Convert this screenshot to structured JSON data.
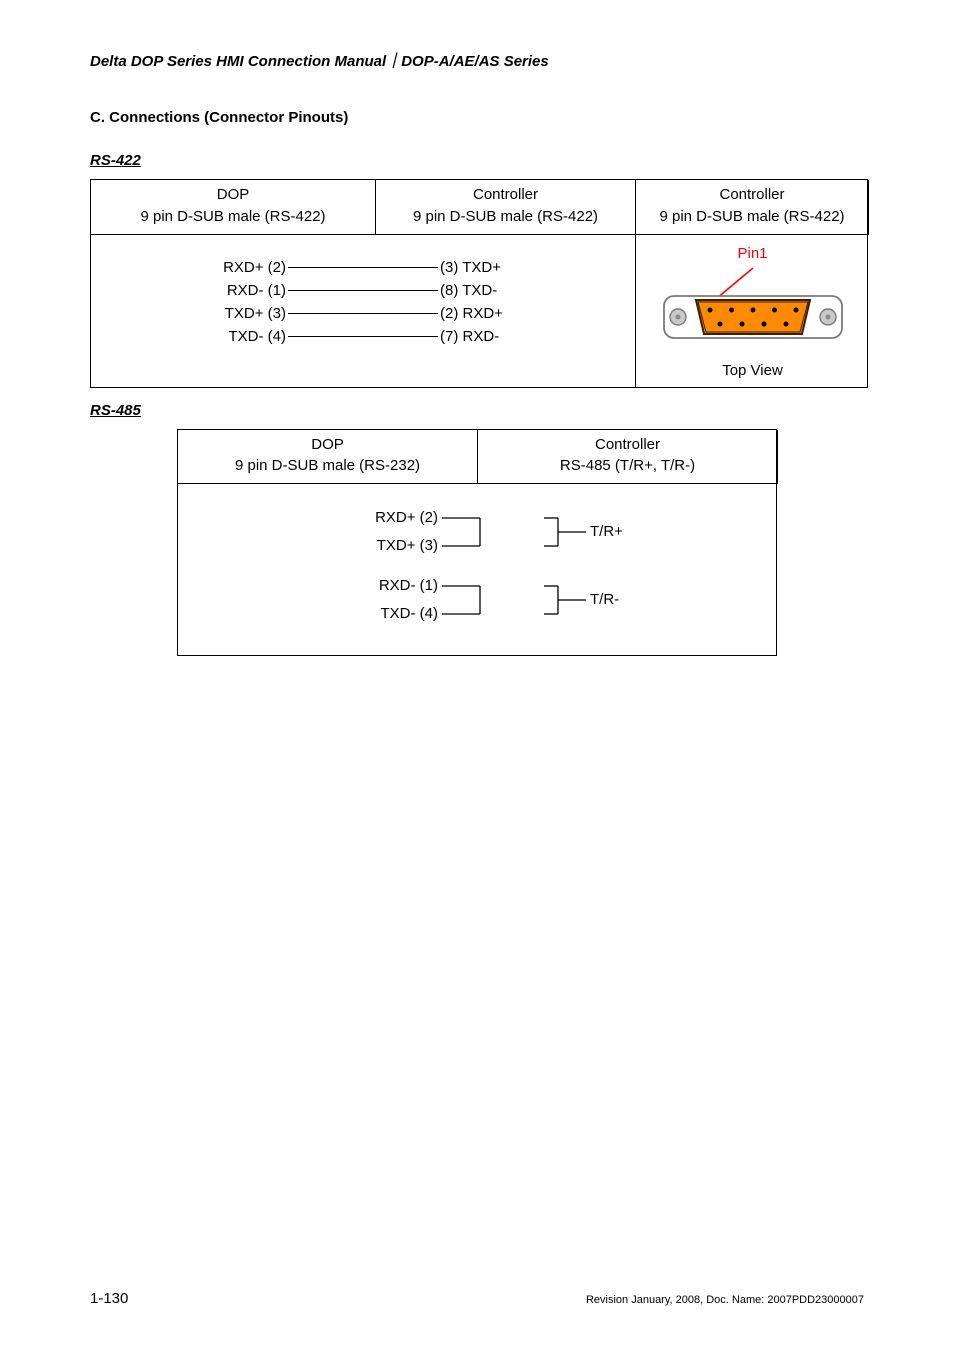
{
  "header": {
    "manual_title": "Delta DOP Series HMI Connection Manual",
    "separator": "｜",
    "series": "DOP-A/AE/AS Series"
  },
  "section_c_title": "C. Connections (Connector Pinouts)",
  "rs422": {
    "heading": "RS-422",
    "table": {
      "col1": {
        "title": "DOP",
        "sub": "9 pin D-SUB male (RS-422)"
      },
      "col2": {
        "title": "Controller",
        "sub": "9 pin D-SUB male (RS-422)"
      },
      "col3": {
        "title": "Controller",
        "sub": "9 pin D-SUB male (RS-422)"
      }
    },
    "wires": [
      {
        "lhs": "RXD+ (2)",
        "rhs": "(3) TXD+"
      },
      {
        "lhs": "RXD- (1)",
        "rhs": "(8) TXD-"
      },
      {
        "lhs": "TXD+ (3)",
        "rhs": "(2) RXD+"
      },
      {
        "lhs": "TXD- (4)",
        "rhs": "(7) RXD-"
      }
    ],
    "pin1_label": "Pin1",
    "topview_label": "Top View",
    "connector": {
      "shell_fill": "#ffffff",
      "shell_stroke": "#7a7a7a",
      "screw_fill": "#c9c9c9",
      "screw_stroke": "#7a7a7a",
      "face_fill": "#ff8a00",
      "face_stroke": "#3a1f00",
      "pin_fill": "#000000",
      "arrow_color": "#ff0000",
      "top_pins": 5,
      "bottom_pins": 4
    }
  },
  "rs485": {
    "heading": "RS-485",
    "table": {
      "col1": {
        "title": "DOP",
        "sub": "9 pin D-SUB male (RS-232)"
      },
      "col2": {
        "title": "Controller",
        "sub": "RS-485 (T/R+, T/R-)"
      }
    },
    "group1": {
      "a": "RXD+ (2)",
      "b": "TXD+ (3)",
      "out": "T/R+"
    },
    "group2": {
      "a": "RXD- (1)",
      "b": "TXD- (4)",
      "out": "T/R-"
    },
    "svg": {
      "line_color": "#000000",
      "font_size": 15,
      "left_x": 250,
      "join_x": 292,
      "out_start_x": 370,
      "out_end_x": 398,
      "g1": {
        "y_a": 24,
        "y_b": 52,
        "y_mid": 38
      },
      "g2": {
        "y_a": 92,
        "y_b": 120,
        "y_mid": 106
      }
    }
  },
  "footer": {
    "page_number": "1-130",
    "revision": "Revision January, 2008, Doc. Name: 2007PDD23000007"
  }
}
